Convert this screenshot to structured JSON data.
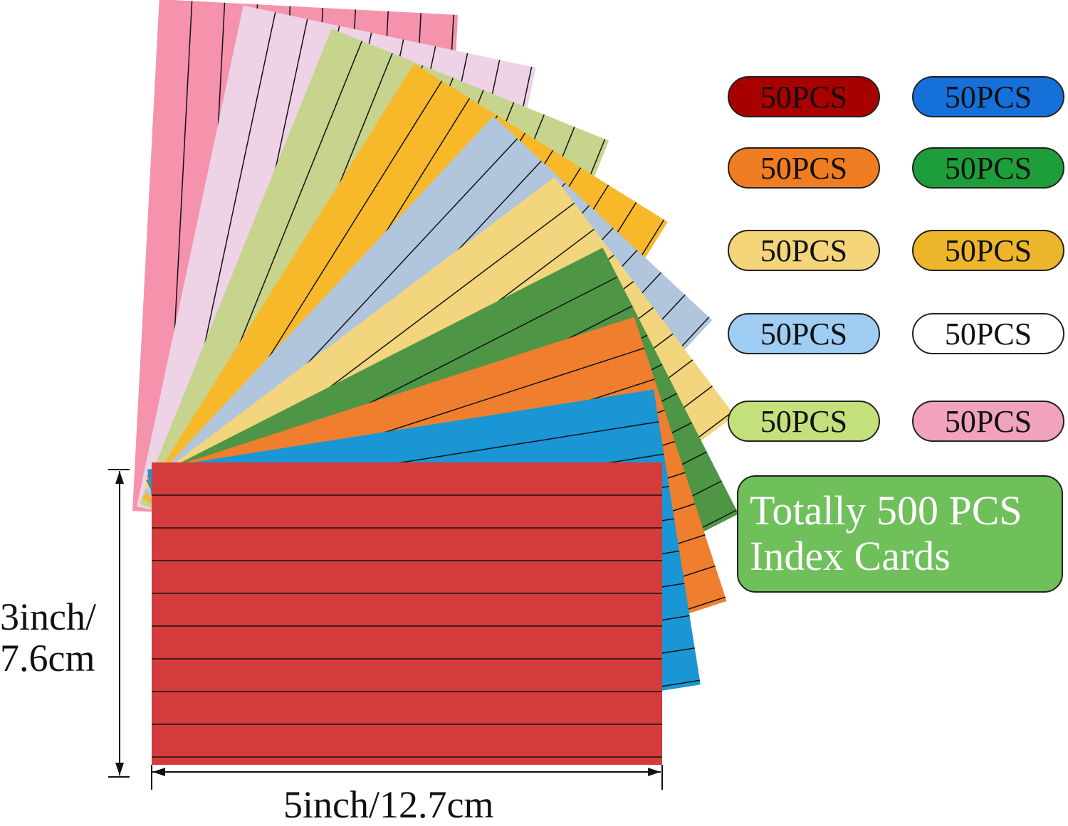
{
  "cards": {
    "colors_back_to_front": [
      "#f593ac",
      "#eed2e6",
      "#c6d48e",
      "#f7b92a",
      "#b1c6dd",
      "#f2d57d",
      "#4e9645",
      "#ef7f2f",
      "#1a96d4",
      "#d43c3c"
    ]
  },
  "badges": [
    {
      "label": "50PCS",
      "color": "#a80000"
    },
    {
      "label": "50PCS",
      "color": "#1570d9"
    },
    {
      "label": "50PCS",
      "color": "#f07d21"
    },
    {
      "label": "50PCS",
      "color": "#1e9e3a"
    },
    {
      "label": "50PCS",
      "color": "#f5d57a"
    },
    {
      "label": "50PCS",
      "color": "#ecb52a"
    },
    {
      "label": "50PCS",
      "color": "#9fcdf3"
    },
    {
      "label": "50PCS",
      "color": "#ffffff"
    },
    {
      "label": "50PCS",
      "color": "#c3e07a"
    },
    {
      "label": "50PCS",
      "color": "#f0a2bf"
    }
  ],
  "total": {
    "line1": "Totally 500 PCS",
    "line2": "Index Cards"
  },
  "dimensions": {
    "height_line1": "3inch/",
    "height_line2": "7.6cm",
    "width": "5inch/12.7cm"
  }
}
